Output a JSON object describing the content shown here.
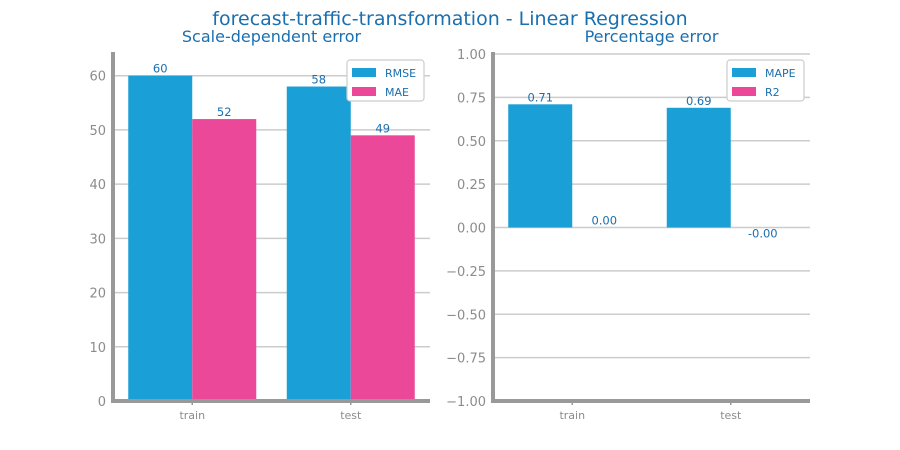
{
  "figure_title": "forecast-traffic-transformation - Linear Regression",
  "colors": {
    "primary": "#1a9fd6",
    "secondary": "#ec4899",
    "text": "#1a6faf",
    "tick": "#8c8c8c"
  },
  "chart_data": [
    {
      "type": "bar",
      "title": "Scale-dependent error",
      "categories": [
        "train",
        "test"
      ],
      "series": [
        {
          "name": "RMSE",
          "values": [
            60,
            58
          ]
        },
        {
          "name": "MAE",
          "values": [
            52,
            49
          ]
        }
      ],
      "labels": [
        [
          "60",
          "58"
        ],
        [
          "52",
          "49"
        ]
      ],
      "ylim": [
        0,
        64
      ],
      "yticks": [
        0,
        10,
        20,
        30,
        40,
        50,
        60
      ],
      "ytick_labels": [
        "0",
        "10",
        "20",
        "30",
        "40",
        "50",
        "60"
      ],
      "grid": true,
      "legend": "top-right"
    },
    {
      "type": "bar",
      "title": "Percentage error",
      "categories": [
        "train",
        "test"
      ],
      "series": [
        {
          "name": "MAPE",
          "values": [
            0.71,
            0.69
          ]
        },
        {
          "name": "R2",
          "values": [
            0.0,
            -0.0
          ]
        }
      ],
      "labels": [
        [
          "0.71",
          "0.69"
        ],
        [
          "0.00",
          "-0.00"
        ]
      ],
      "ylim": [
        -1.0,
        1.0
      ],
      "yticks": [
        1.0,
        0.75,
        0.5,
        0.25,
        0.0,
        -0.25,
        -0.5,
        -0.75,
        -1.0
      ],
      "ytick_labels": [
        "1.00",
        "0.75",
        "0.50",
        "0.25",
        "0.00",
        "−0.25",
        "−0.50",
        "−0.75",
        "−1.00"
      ],
      "grid": true,
      "legend": "top-right"
    }
  ]
}
